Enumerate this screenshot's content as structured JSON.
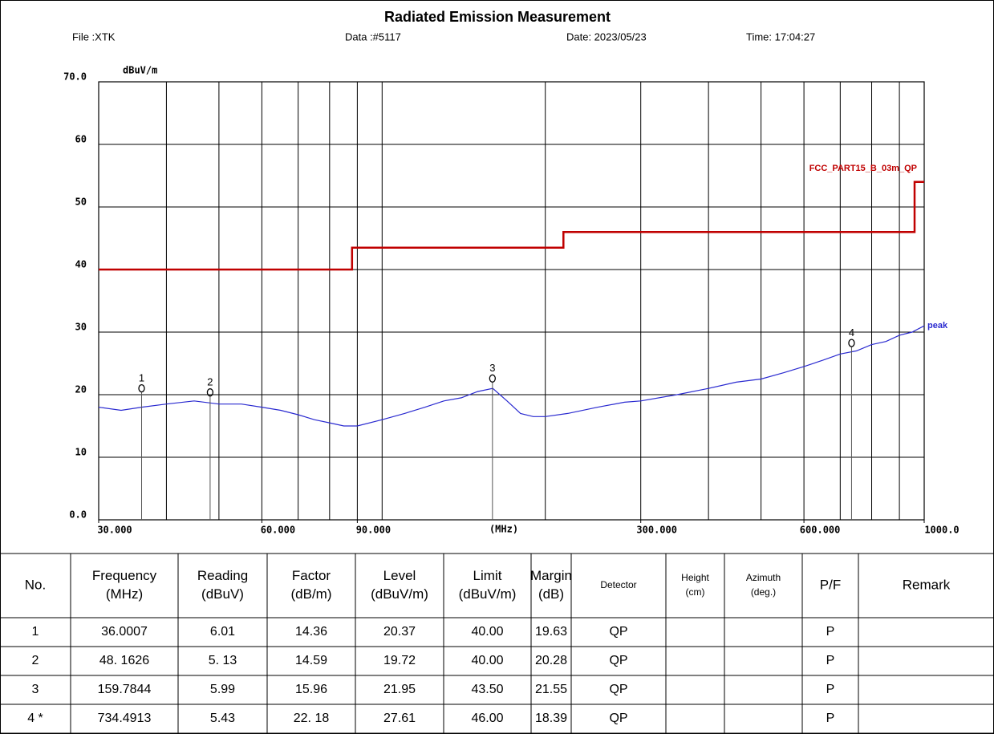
{
  "header": {
    "title": "Radiated Emission Measurement",
    "file": "File :XTK",
    "data": "Data :#5117",
    "date": "Date: 2023/05/23",
    "time": "Time: 17:04:27"
  },
  "chart_data": {
    "type": "line",
    "ylabel": "dBuV/m",
    "xlabel": "(MHz)",
    "xscale": "log",
    "xlim": [
      30,
      1000
    ],
    "ylim": [
      0,
      70
    ],
    "xticks": [
      {
        "value": 30,
        "label": "30.000"
      },
      {
        "value": 60,
        "label": "60.000"
      },
      {
        "value": 90,
        "label": "90.000"
      },
      {
        "value": 300,
        "label": "300.000"
      },
      {
        "value": 600,
        "label": "600.000"
      },
      {
        "value": 1000,
        "label": "1000.0"
      }
    ],
    "xgrid": [
      40,
      50,
      60,
      70,
      80,
      90,
      100,
      200,
      300,
      400,
      500,
      600,
      700,
      800,
      900
    ],
    "yticks": [
      {
        "value": 0,
        "label": "0.0"
      },
      10,
      20,
      30,
      40,
      50,
      60,
      {
        "value": 70,
        "label": "70.0"
      }
    ],
    "grid": true,
    "series": [
      {
        "name": "FCC_PART15_B_03m_QP",
        "color": "#c00000",
        "x": [
          30,
          88,
          88,
          216,
          216,
          960,
          960,
          1000
        ],
        "values": [
          40,
          40,
          43.5,
          43.5,
          46,
          46,
          54,
          54
        ]
      },
      {
        "name": "peak",
        "color": "#2a2ad0",
        "x": [
          30,
          33,
          36,
          40,
          45,
          50,
          55,
          60,
          65,
          70,
          75,
          80,
          85,
          90,
          100,
          110,
          120,
          130,
          140,
          150,
          160,
          170,
          180,
          190,
          200,
          220,
          250,
          280,
          300,
          350,
          400,
          450,
          500,
          550,
          600,
          650,
          700,
          750,
          800,
          850,
          900,
          950,
          1000
        ],
        "values": [
          18,
          17.5,
          18,
          18.5,
          19,
          18.5,
          18.5,
          18,
          17.5,
          16.8,
          16,
          15.5,
          15,
          15,
          16,
          17,
          18,
          19,
          19.5,
          20.5,
          21,
          19,
          17,
          16.5,
          16.5,
          17,
          18,
          18.8,
          19,
          20,
          21,
          22,
          22.5,
          23.5,
          24.5,
          25.5,
          26.5,
          27,
          28,
          28.5,
          29.5,
          30,
          31
        ]
      }
    ],
    "markers": [
      {
        "label": "1",
        "x": 36.0007,
        "y": 20.37
      },
      {
        "label": "2",
        "x": 48.1626,
        "y": 19.72
      },
      {
        "label": "3",
        "x": 159.7844,
        "y": 21.95
      },
      {
        "label": "4",
        "x": 734.4913,
        "y": 27.61
      }
    ]
  },
  "table": {
    "headers": [
      [
        "No."
      ],
      [
        "Frequency",
        "(MHz)"
      ],
      [
        "Reading",
        "(dBuV)"
      ],
      [
        "Factor",
        "(dB/m)"
      ],
      [
        "Level",
        "(dBuV/m)"
      ],
      [
        "Limit",
        "(dBuV/m)"
      ],
      [
        "Margin",
        "(dB)"
      ],
      [
        "Detector"
      ],
      [
        "Height",
        "(cm)"
      ],
      [
        "Azimuth",
        "(deg.)"
      ],
      [
        "P/F"
      ],
      [
        "Remark"
      ]
    ],
    "rows": [
      [
        "1",
        "36.0007",
        "6.01",
        "14.36",
        "20.37",
        "40.00",
        "19.63",
        "QP",
        "",
        "",
        "P",
        ""
      ],
      [
        "2",
        "48. 1626",
        "5. 13",
        "14.59",
        "19.72",
        "40.00",
        "20.28",
        "QP",
        "",
        "",
        "P",
        ""
      ],
      [
        "3",
        "159.7844",
        "5.99",
        "15.96",
        "21.95",
        "43.50",
        "21.55",
        "QP",
        "",
        "",
        "P",
        ""
      ],
      [
        "4  *",
        "734.4913",
        "5.43",
        "22. 18",
        "27.61",
        "46.00",
        "18.39",
        "QP",
        "",
        "",
        "P",
        ""
      ]
    ]
  }
}
